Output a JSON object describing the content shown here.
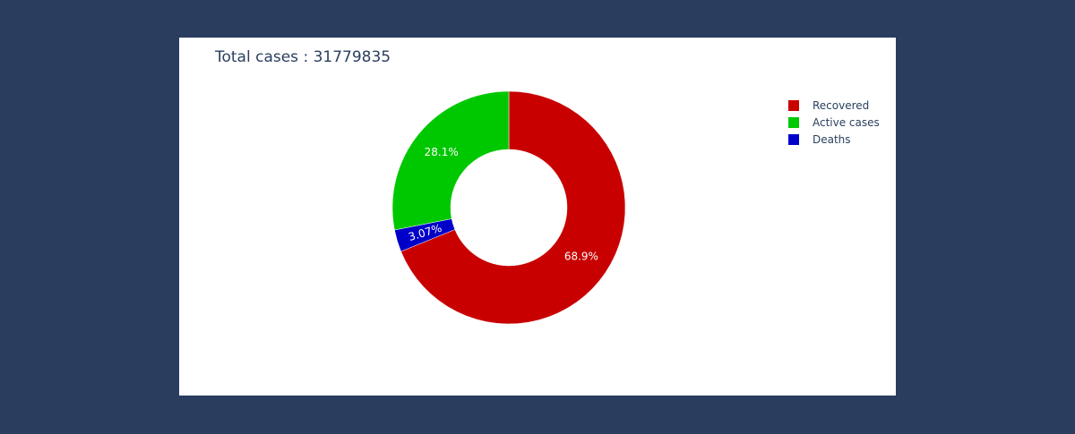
{
  "chart_data": {
    "type": "pie",
    "title_prefix": "Total cases : ",
    "title_value": "31779835",
    "hole": 0.5,
    "direction": "clockwise",
    "start_angle_deg": 0,
    "slices": [
      {
        "label": "Recovered",
        "percent": 68.9,
        "text": "68.9%",
        "color": "#c80000"
      },
      {
        "label": "Deaths",
        "percent": 3.07,
        "text": "3.07%",
        "color": "#0000c8"
      },
      {
        "label": "Active cases",
        "percent": 28.1,
        "text": "28.1%",
        "color": "#00c800"
      }
    ],
    "legend_order": [
      "Recovered",
      "Active cases",
      "Deaths"
    ],
    "legend_position": "top-right",
    "label_color": "#ffffff"
  },
  "colors": {
    "page_background": "#2a3d5e",
    "panel_background": "#ffffff",
    "text": "#2a3f5f"
  }
}
